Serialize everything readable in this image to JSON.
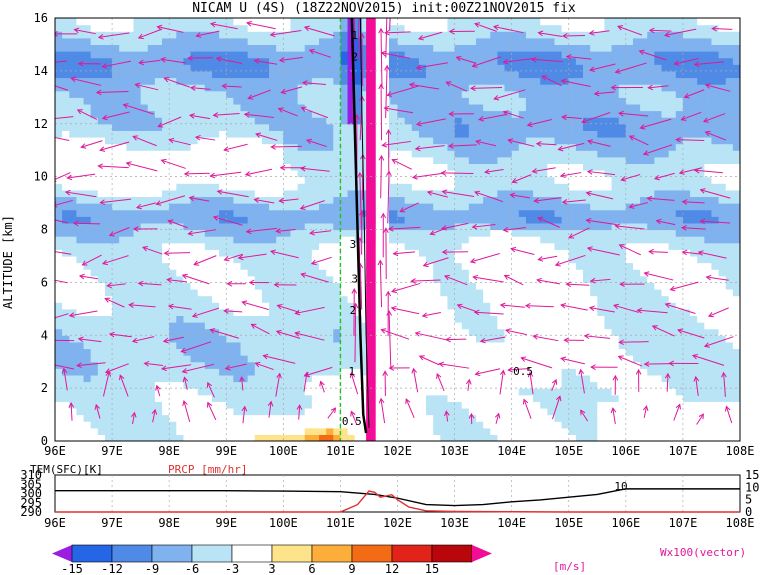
{
  "chart_data": [
    {
      "type": "heatmap",
      "title": "NICAM U (4S) (18Z22NOV2015) init:00Z21NOV2015 fix",
      "xlabel": "",
      "ylabel": "ALTITUDE [km]",
      "xlim": [
        96,
        108
      ],
      "ylim": [
        0,
        16
      ],
      "x_tick_labels": [
        "96E",
        "97E",
        "98E",
        "99E",
        "100E",
        "101E",
        "102E",
        "103E",
        "104E",
        "105E",
        "106E",
        "107E",
        "108E"
      ],
      "y_tick_labels": [
        "0",
        "2",
        "4",
        "6",
        "8",
        "10",
        "12",
        "14",
        "16"
      ],
      "grid": true,
      "dashed_reference_line_x": 101,
      "colorbar": {
        "levels": [
          "-15",
          "-12",
          "-9",
          "-6",
          "-3",
          "3",
          "6",
          "9",
          "12",
          "15"
        ],
        "unit": "[m/s]",
        "colors": [
          "#9a1ee0",
          "#2466e6",
          "#4f8ae6",
          "#7fb2ee",
          "#b8e4f6",
          "#ffffff",
          "#fde389",
          "#fdae3a",
          "#f46b16",
          "#e2231a",
          "#b8060b",
          "#f20c98"
        ]
      },
      "contour_labels": [
        "1",
        "2",
        "3",
        "3",
        "2",
        "1",
        "0.5",
        "0.5"
      ],
      "vector_legend": "Wx100(vector)",
      "x_bands": [
        {
          "x": [
            96.0,
            98.0,
            99.0,
            100.0,
            100.6,
            101.0
          ],
          "y_profile_shade": "blue"
        },
        {
          "x": [
            103.0,
            104.0
          ],
          "note": "vertical arrows"
        }
      ]
    },
    {
      "type": "line",
      "title": "",
      "xlim": [
        96,
        108
      ],
      "left_axis": {
        "label": "TEM(SFC)[K]",
        "tick_labels": [
          "290",
          "295",
          "300",
          "305",
          "310"
        ],
        "ylim": [
          290,
          310
        ]
      },
      "right_axis": {
        "label": "PRCP [mm/hr]",
        "tick_labels": [
          "0",
          "5",
          "10",
          "15"
        ],
        "ylim": [
          0,
          15
        ]
      },
      "x_tick_labels": [
        "96E",
        "97E",
        "98E",
        "99E",
        "100E",
        "101E",
        "102E",
        "103E",
        "104E",
        "105E",
        "106E",
        "107E",
        "108E"
      ],
      "series": [
        {
          "name": "TEM(SFC)[K]",
          "color": "#000000",
          "x": [
            96.0,
            97.0,
            98.0,
            99.0,
            100.0,
            101.0,
            101.6,
            102.0,
            102.5,
            103.0,
            103.5,
            104.0,
            104.5,
            105.0,
            105.5,
            106.0,
            107.0,
            108.0
          ],
          "values": [
            301.5,
            301.5,
            301.5,
            301.5,
            301.3,
            301.0,
            299.5,
            297.5,
            294.0,
            293.5,
            294.0,
            295.5,
            296.5,
            298.0,
            299.5,
            302.5,
            302.5,
            302.5
          ]
        },
        {
          "name": "PRCP [mm/hr]",
          "color": "#e03030",
          "x": [
            96.0,
            101.0,
            101.3,
            101.5,
            101.6,
            101.7,
            101.9,
            102.0,
            102.2,
            102.5,
            103.0,
            104.0,
            105.0,
            108.0
          ],
          "values": [
            0,
            0,
            3,
            8.5,
            8.0,
            6.0,
            7.0,
            5.0,
            2.0,
            0.5,
            0.2,
            0.1,
            0,
            0
          ]
        }
      ],
      "annotation": "10"
    }
  ]
}
